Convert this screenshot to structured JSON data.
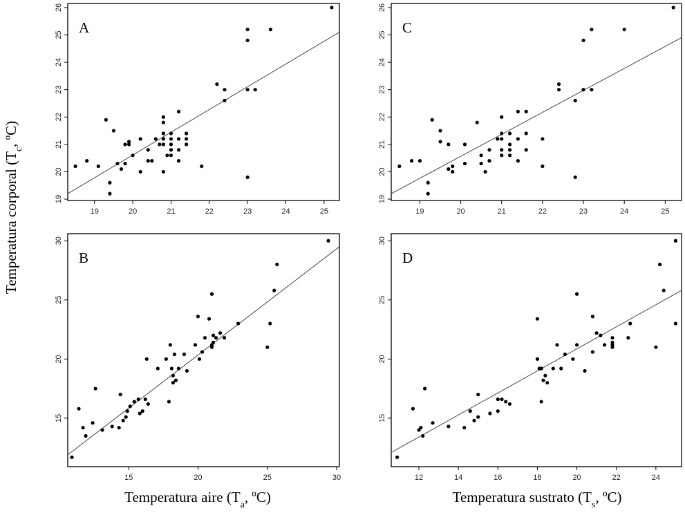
{
  "chart_data": [
    {
      "type": "scatter",
      "panel_label": "A",
      "xlabel": "",
      "ylabel": "",
      "xlim": [
        18.3,
        25.4
      ],
      "ylim": [
        18.95,
        26.15
      ],
      "xticks": [
        19,
        20,
        21,
        22,
        23,
        24,
        25
      ],
      "yticks": [
        19,
        20,
        21,
        22,
        23,
        24,
        25,
        26
      ],
      "fit_line": {
        "x": [
          18.3,
          25.4
        ],
        "y": [
          19.2,
          25.1
        ]
      },
      "points": [
        [
          18.5,
          20.2
        ],
        [
          18.8,
          20.4
        ],
        [
          19.1,
          20.2
        ],
        [
          19.3,
          21.9
        ],
        [
          19.4,
          19.6
        ],
        [
          19.4,
          19.2
        ],
        [
          19.5,
          21.5
        ],
        [
          19.6,
          20.3
        ],
        [
          19.7,
          20.1
        ],
        [
          19.8,
          21.0
        ],
        [
          19.8,
          20.3
        ],
        [
          19.9,
          21.1
        ],
        [
          19.9,
          21.0
        ],
        [
          20.0,
          20.6
        ],
        [
          20.2,
          20.0
        ],
        [
          20.2,
          21.2
        ],
        [
          20.4,
          20.4
        ],
        [
          20.4,
          20.8
        ],
        [
          20.5,
          20.4
        ],
        [
          20.6,
          21.2
        ],
        [
          20.7,
          21.0
        ],
        [
          20.8,
          20.0
        ],
        [
          20.8,
          22.0
        ],
        [
          20.8,
          21.8
        ],
        [
          20.8,
          21.4
        ],
        [
          20.8,
          21.2
        ],
        [
          20.8,
          21.0
        ],
        [
          20.9,
          20.6
        ],
        [
          21.0,
          21.4
        ],
        [
          21.0,
          21.2
        ],
        [
          21.0,
          21.0
        ],
        [
          21.0,
          20.8
        ],
        [
          21.0,
          20.6
        ],
        [
          21.2,
          20.4
        ],
        [
          21.2,
          21.2
        ],
        [
          21.2,
          20.8
        ],
        [
          21.2,
          22.2
        ],
        [
          21.4,
          21.4
        ],
        [
          21.4,
          21.2
        ],
        [
          21.4,
          21.0
        ],
        [
          21.8,
          20.2
        ],
        [
          22.2,
          23.2
        ],
        [
          22.4,
          23.0
        ],
        [
          22.4,
          22.6
        ],
        [
          23.0,
          25.2
        ],
        [
          23.0,
          24.8
        ],
        [
          23.0,
          23.0
        ],
        [
          23.0,
          19.8
        ],
        [
          23.2,
          23.0
        ],
        [
          23.6,
          25.2
        ],
        [
          25.2,
          26.0
        ]
      ]
    },
    {
      "type": "scatter",
      "panel_label": "C",
      "xlabel": "",
      "ylabel": "",
      "xlim": [
        18.3,
        25.4
      ],
      "ylim": [
        18.95,
        26.15
      ],
      "xticks": [
        19,
        20,
        21,
        22,
        23,
        24,
        25
      ],
      "yticks": [
        19,
        20,
        21,
        22,
        23,
        24,
        25,
        26
      ],
      "fit_line": {
        "x": [
          18.3,
          25.4
        ],
        "y": [
          19.2,
          24.9
        ]
      },
      "points": [
        [
          18.5,
          20.2
        ],
        [
          18.8,
          20.4
        ],
        [
          19.0,
          20.4
        ],
        [
          19.2,
          19.6
        ],
        [
          19.2,
          19.2
        ],
        [
          19.3,
          21.9
        ],
        [
          19.5,
          21.5
        ],
        [
          19.5,
          21.1
        ],
        [
          19.7,
          21.0
        ],
        [
          19.7,
          20.1
        ],
        [
          19.8,
          20.2
        ],
        [
          19.8,
          20.0
        ],
        [
          20.1,
          21.0
        ],
        [
          20.1,
          20.3
        ],
        [
          20.4,
          21.8
        ],
        [
          20.5,
          20.6
        ],
        [
          20.5,
          20.3
        ],
        [
          20.6,
          20.0
        ],
        [
          20.7,
          20.8
        ],
        [
          20.7,
          20.4
        ],
        [
          20.9,
          21.2
        ],
        [
          21.0,
          22.0
        ],
        [
          21.0,
          21.4
        ],
        [
          21.0,
          21.2
        ],
        [
          21.0,
          20.8
        ],
        [
          21.0,
          20.6
        ],
        [
          21.2,
          21.4
        ],
        [
          21.2,
          21.0
        ],
        [
          21.2,
          20.8
        ],
        [
          21.2,
          20.6
        ],
        [
          21.4,
          22.2
        ],
        [
          21.4,
          21.2
        ],
        [
          21.4,
          20.4
        ],
        [
          21.6,
          22.2
        ],
        [
          21.6,
          21.4
        ],
        [
          21.6,
          20.8
        ],
        [
          22.0,
          21.2
        ],
        [
          22.0,
          20.2
        ],
        [
          22.4,
          23.2
        ],
        [
          22.4,
          23.0
        ],
        [
          22.8,
          22.6
        ],
        [
          22.8,
          19.8
        ],
        [
          23.0,
          24.8
        ],
        [
          23.0,
          23.0
        ],
        [
          23.2,
          25.2
        ],
        [
          23.2,
          23.0
        ],
        [
          24.0,
          25.2
        ],
        [
          25.2,
          26.0
        ]
      ]
    },
    {
      "type": "scatter",
      "panel_label": "B",
      "xlabel": "Temperatura aire (T",
      "xlabel_sub": "a",
      "xlabel_tail": ", ºC)",
      "ylabel": "",
      "xlim": [
        10.6,
        30.2
      ],
      "ylim": [
        10.9,
        30.6
      ],
      "xticks": [
        15,
        20,
        25,
        30
      ],
      "yticks": [
        15,
        20,
        25,
        30
      ],
      "fit_line": {
        "x": [
          10.6,
          30.2
        ],
        "y": [
          11.9,
          29.5
        ]
      },
      "points": [
        [
          10.9,
          11.7
        ],
        [
          11.4,
          15.8
        ],
        [
          11.7,
          14.2
        ],
        [
          11.9,
          13.5
        ],
        [
          12.4,
          14.6
        ],
        [
          12.6,
          17.5
        ],
        [
          13.1,
          14.0
        ],
        [
          13.8,
          14.3
        ],
        [
          14.3,
          14.2
        ],
        [
          14.4,
          17.0
        ],
        [
          14.6,
          14.8
        ],
        [
          14.8,
          15.1
        ],
        [
          14.9,
          15.6
        ],
        [
          15.1,
          16.0
        ],
        [
          15.4,
          16.4
        ],
        [
          15.7,
          16.6
        ],
        [
          15.8,
          15.4
        ],
        [
          16.0,
          15.6
        ],
        [
          16.2,
          16.6
        ],
        [
          16.4,
          16.2
        ],
        [
          16.3,
          20.0
        ],
        [
          17.1,
          19.2
        ],
        [
          17.7,
          20.0
        ],
        [
          17.9,
          16.4
        ],
        [
          18.0,
          21.2
        ],
        [
          18.1,
          19.2
        ],
        [
          18.2,
          18.6
        ],
        [
          18.2,
          18.0
        ],
        [
          18.3,
          20.4
        ],
        [
          18.4,
          18.2
        ],
        [
          18.6,
          19.2
        ],
        [
          19.0,
          20.4
        ],
        [
          19.2,
          19.0
        ],
        [
          19.8,
          21.2
        ],
        [
          20.0,
          23.6
        ],
        [
          20.1,
          20.0
        ],
        [
          20.3,
          20.6
        ],
        [
          20.5,
          21.8
        ],
        [
          20.8,
          23.4
        ],
        [
          21.0,
          25.5
        ],
        [
          21.0,
          21.0
        ],
        [
          21.0,
          21.2
        ],
        [
          21.1,
          21.4
        ],
        [
          21.1,
          22.0
        ],
        [
          21.3,
          21.8
        ],
        [
          21.6,
          22.2
        ],
        [
          21.9,
          21.8
        ],
        [
          22.9,
          23.0
        ],
        [
          25.0,
          21.0
        ],
        [
          25.2,
          23.0
        ],
        [
          25.5,
          25.8
        ],
        [
          25.7,
          28.0
        ],
        [
          29.4,
          30.0
        ]
      ]
    },
    {
      "type": "scatter",
      "panel_label": "D",
      "xlabel": "Temperatura sustrato (T",
      "xlabel_sub": "s",
      "xlabel_tail": ", ºC)",
      "ylabel": "",
      "xlim": [
        10.6,
        25.3
      ],
      "ylim": [
        10.9,
        30.6
      ],
      "xticks": [
        12,
        14,
        16,
        18,
        20,
        22,
        24
      ],
      "yticks": [
        15,
        20,
        25,
        30
      ],
      "fit_line": {
        "x": [
          10.6,
          25.3
        ],
        "y": [
          12.1,
          25.8
        ]
      },
      "points": [
        [
          10.9,
          11.7
        ],
        [
          11.7,
          15.8
        ],
        [
          12.0,
          14.0
        ],
        [
          12.1,
          14.2
        ],
        [
          12.2,
          13.5
        ],
        [
          12.3,
          17.5
        ],
        [
          12.7,
          14.6
        ],
        [
          13.5,
          14.3
        ],
        [
          14.3,
          14.2
        ],
        [
          14.6,
          15.6
        ],
        [
          14.8,
          14.8
        ],
        [
          15.0,
          15.1
        ],
        [
          15.0,
          17.0
        ],
        [
          15.6,
          15.4
        ],
        [
          16.0,
          15.6
        ],
        [
          16.0,
          16.6
        ],
        [
          16.2,
          16.6
        ],
        [
          16.4,
          16.4
        ],
        [
          16.6,
          16.2
        ],
        [
          18.0,
          23.4
        ],
        [
          18.0,
          20.0
        ],
        [
          18.1,
          19.2
        ],
        [
          18.2,
          19.2
        ],
        [
          18.2,
          16.4
        ],
        [
          18.3,
          18.2
        ],
        [
          18.4,
          18.6
        ],
        [
          18.5,
          18.0
        ],
        [
          18.8,
          19.2
        ],
        [
          19.0,
          21.2
        ],
        [
          19.2,
          19.2
        ],
        [
          19.4,
          20.4
        ],
        [
          19.8,
          20.0
        ],
        [
          20.0,
          25.5
        ],
        [
          20.0,
          21.2
        ],
        [
          20.4,
          19.0
        ],
        [
          20.8,
          23.6
        ],
        [
          20.8,
          20.6
        ],
        [
          21.0,
          22.2
        ],
        [
          21.2,
          22.0
        ],
        [
          21.4,
          21.2
        ],
        [
          21.8,
          21.8
        ],
        [
          21.8,
          21.4
        ],
        [
          21.8,
          21.2
        ],
        [
          21.8,
          21.0
        ],
        [
          22.6,
          21.8
        ],
        [
          22.7,
          23.0
        ],
        [
          24.0,
          21.0
        ],
        [
          24.2,
          28.0
        ],
        [
          24.4,
          25.8
        ],
        [
          25.0,
          30.0
        ],
        [
          25.0,
          23.0
        ]
      ]
    }
  ],
  "shared_ylabel": "Temperatura corporal (T",
  "shared_ylabel_sub": "c",
  "shared_ylabel_tail": ", ºC)"
}
